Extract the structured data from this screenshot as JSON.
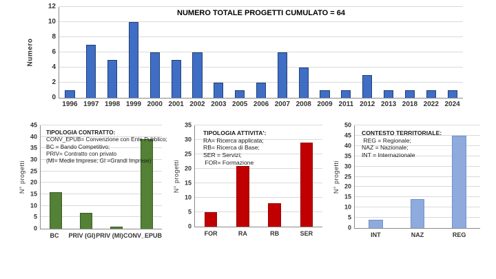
{
  "page": {
    "background": "#ffffff",
    "grid_color": "#d9d9d9",
    "axis_color": "#898989",
    "text_color": "#333333"
  },
  "chart_data": [
    {
      "id": "progetti-cumulato",
      "type": "bar",
      "title": "NUMERO TOTALE PROGETTI CUMULATO = 64",
      "xlabel": "",
      "ylabel": "Numero",
      "ylim": [
        0,
        12
      ],
      "ytick_step": 2,
      "grid": true,
      "categories": [
        "1996",
        "1997",
        "1998",
        "1999",
        "2000",
        "2001",
        "2002",
        "2003",
        "2005",
        "2006",
        "2007",
        "2008",
        "2009",
        "2011",
        "2012",
        "2013",
        "2018",
        "2022",
        "2024"
      ],
      "values": [
        1,
        7,
        5,
        10,
        6,
        5,
        6,
        2,
        1,
        2,
        6,
        4,
        1,
        1,
        3,
        1,
        1,
        1,
        1
      ],
      "bar_color": "#3f6ec4",
      "bar_border": "#1f3f77",
      "legend_title": "",
      "legend_lines": []
    },
    {
      "id": "tipologia-contratto",
      "type": "bar",
      "title": "",
      "xlabel": "",
      "ylabel": "N° progetti",
      "ylim": [
        0,
        45
      ],
      "ytick_step": 5,
      "grid": true,
      "categories": [
        "BC",
        "PRIV (GI)",
        "PRIV (MI)",
        "CONV_EPUB"
      ],
      "values": [
        16,
        7,
        1,
        39
      ],
      "bar_color": "#538135",
      "bar_border": "#3a5a26",
      "legend_title": "TIPOLOGIA CONTRATTO:",
      "legend_lines": [
        "CONV_EPUB= Convenzione con Ente Pubblico;",
        "BC = Bando Competitivo;",
        "PRIV= Contratto con privato",
        "(MI= Medie Imprese; GI =Grandi Imprese)"
      ]
    },
    {
      "id": "tipologia-attivita",
      "type": "bar",
      "title": "",
      "xlabel": "",
      "ylabel": "N° progetti",
      "ylim": [
        0,
        35
      ],
      "ytick_step": 5,
      "grid": true,
      "categories": [
        "FOR",
        "RA",
        "RB",
        "SER"
      ],
      "values": [
        5,
        21,
        8,
        29
      ],
      "bar_color": "#c00000",
      "bar_border": "#9c0000",
      "legend_title": "TIPOLOGIA ATTIVITA':",
      "legend_lines": [
        "RA= Ricerca applicata;",
        "RB= Ricerca di Base;",
        "SER = Servizi;",
        " FOR= Formazione"
      ]
    },
    {
      "id": "contesto-territoriale",
      "type": "bar",
      "title": "",
      "xlabel": "",
      "ylabel": "N° progetti",
      "ylim": [
        0,
        50
      ],
      "ytick_step": 5,
      "grid": true,
      "categories": [
        "INT",
        "NAZ",
        "REG"
      ],
      "values": [
        4,
        14,
        45
      ],
      "bar_color": "#8faadc",
      "bar_border": "#7292c9",
      "legend_title": "CONTESTO TERRITORIALE:",
      "legend_lines": [
        " REG = Regionale;",
        "NAZ = Nazionale;",
        "INT = Internazionale"
      ]
    }
  ]
}
